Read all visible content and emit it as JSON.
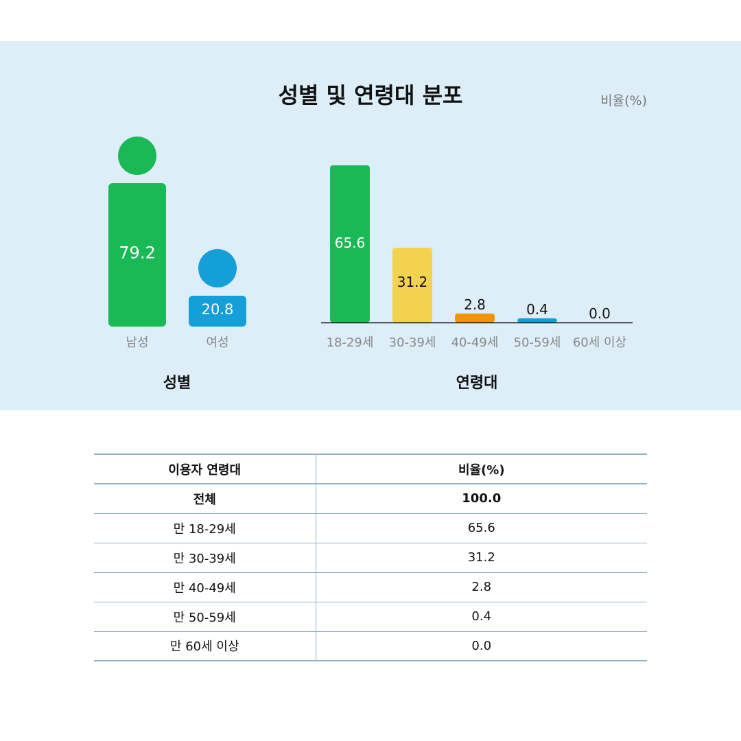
{
  "title": "성별 및 연령대 분포",
  "unit": "비율(%)",
  "chart_data": [
    {
      "type": "bar",
      "title": "성별",
      "categories": [
        "남성",
        "여성"
      ],
      "values": [
        79.2,
        20.8
      ],
      "colors": [
        "#1bb955",
        "#149fd8"
      ]
    },
    {
      "type": "bar",
      "title": "연령대",
      "categories": [
        "18-29세",
        "30-39세",
        "40-49세",
        "50-59세",
        "60세 이상"
      ],
      "values": [
        65.6,
        31.2,
        2.8,
        0.4,
        0.0
      ],
      "colors": [
        "#1bb955",
        "#f3d250",
        "#f0940a",
        "#149fd8",
        "#149fd8"
      ]
    }
  ],
  "table": {
    "headers": [
      "이용자 연령대",
      "비율(%)"
    ],
    "rows": [
      [
        "전체",
        "100.0"
      ],
      [
        "만 18-29세",
        "65.6"
      ],
      [
        "만 30-39세",
        "31.2"
      ],
      [
        "만 40-49세",
        "2.8"
      ],
      [
        "만 50-59세",
        "0.4"
      ],
      [
        "만 60세 이상",
        "0.0"
      ]
    ]
  }
}
